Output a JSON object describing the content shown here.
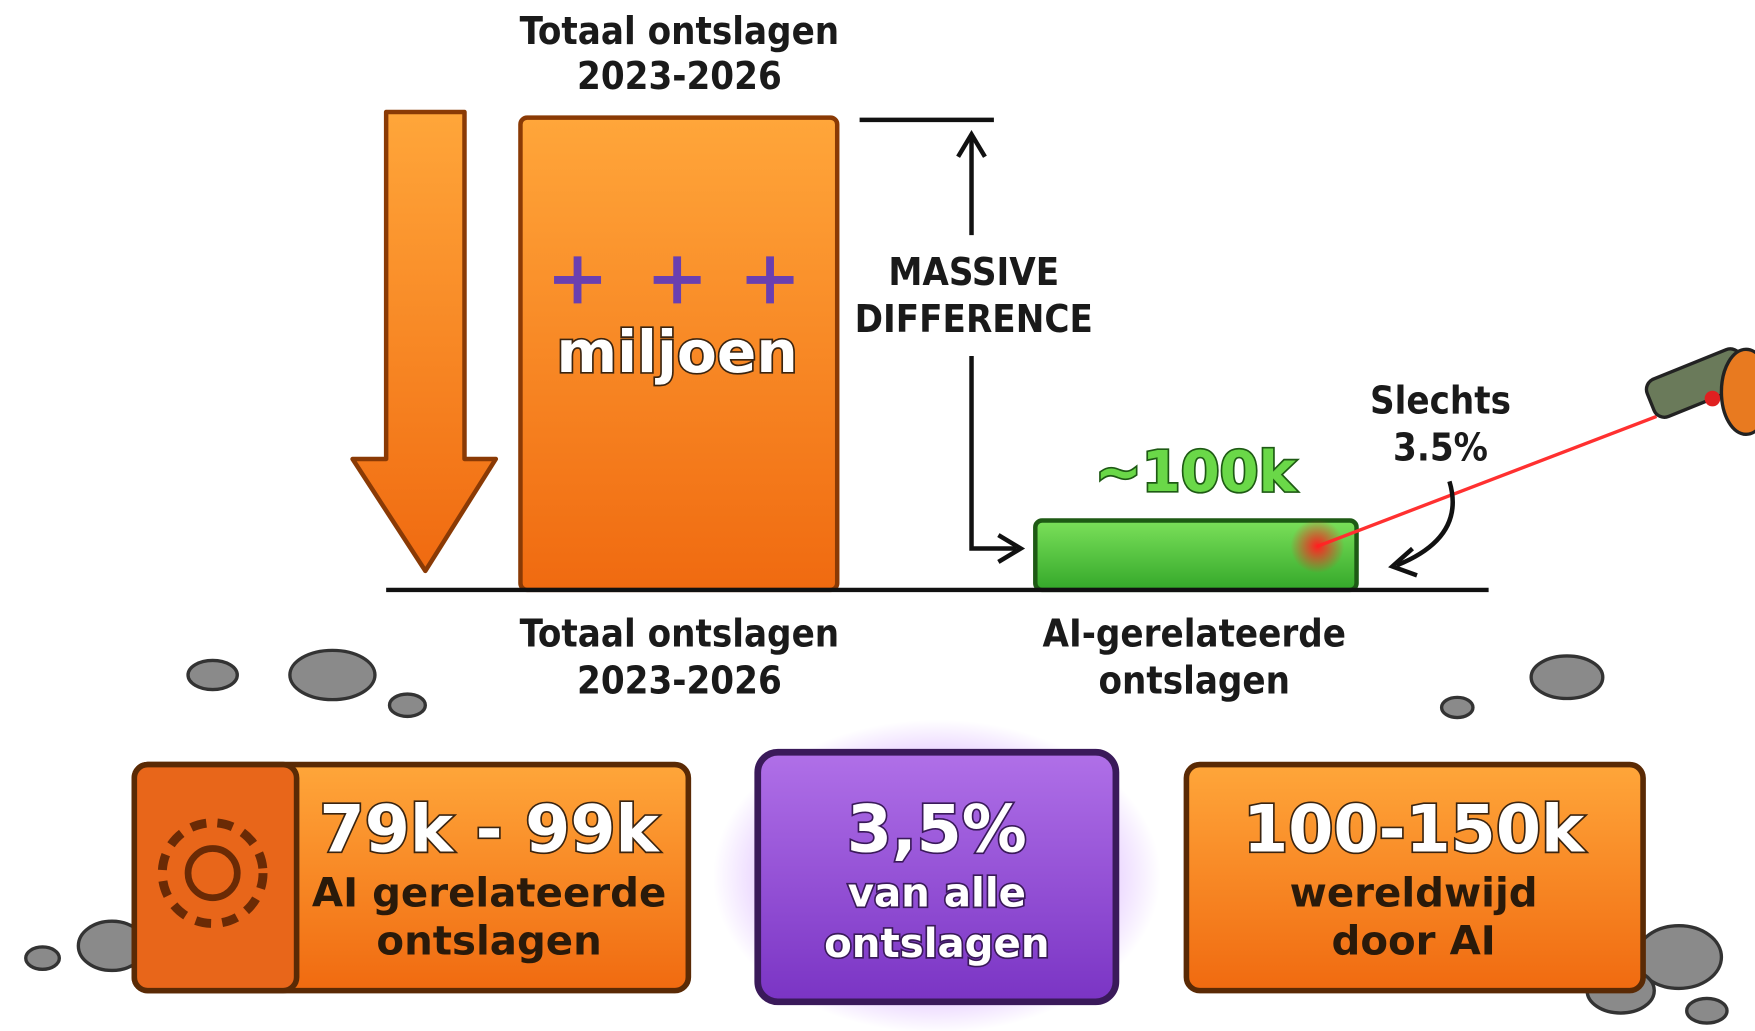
{
  "top_label": {
    "lines": [
      "Totaal ontslagen",
      "2023-2026"
    ]
  },
  "big_bar": {
    "label": "miljoen"
  },
  "difference_label": {
    "lines": [
      "MASSIVE",
      "DIFFERENCE"
    ]
  },
  "small_bar": {
    "label": "~100k"
  },
  "callout": {
    "lines": [
      "Slechts",
      "3.5%"
    ]
  },
  "bar_labels": [
    {
      "lines": [
        "Totaal ontslagen",
        "2023-2026"
      ]
    },
    {
      "lines": [
        "AI-gerelateerde",
        "ontslagen"
      ]
    }
  ],
  "cards": [
    {
      "value": "79k - 99k",
      "lines": [
        "AI gerelateerde",
        "ontslagen"
      ]
    },
    {
      "value": "3,5%",
      "lines": [
        "van alle",
        "ontslagen"
      ]
    },
    {
      "value": "100-150k",
      "lines": [
        "wereldwijd",
        "door AI"
      ]
    }
  ]
}
